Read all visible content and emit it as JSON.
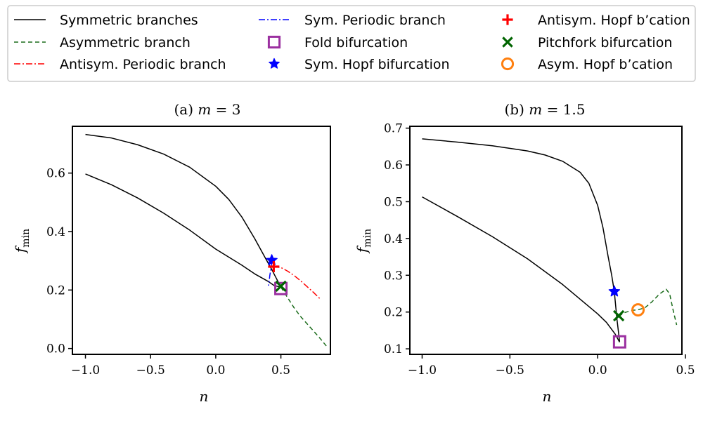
{
  "legend": {
    "entries": [
      {
        "label": "Symmetric branches",
        "kind": "line",
        "color": "#000000",
        "dash": "solid"
      },
      {
        "label": "Asymmetric branch",
        "kind": "line",
        "color": "#1a6b1a",
        "dash": "dashed"
      },
      {
        "label": "Antisym. Periodic branch",
        "kind": "line",
        "color": "#ff0000",
        "dash": "dashdot"
      },
      {
        "label": "Sym. Periodic branch",
        "kind": "line",
        "color": "#0000ff",
        "dash": "dashdot"
      },
      {
        "label": "Fold bifurcation",
        "kind": "square",
        "color": "#9b30a0"
      },
      {
        "label": "Sym. Hopf bifurcation",
        "kind": "star",
        "color": "#0000ff"
      },
      {
        "label": "Antisym. Hopf b’cation",
        "kind": "plus",
        "color": "#ff0000"
      },
      {
        "label": "Pitchfork bifurcation",
        "kind": "x",
        "color": "#006400"
      },
      {
        "label": "Asym. Hopf b’cation",
        "kind": "circle",
        "color": "#ff7f0e"
      }
    ]
  },
  "chart_data": [
    {
      "type": "line",
      "title": "(a) m = 3",
      "xlabel": "n",
      "ylabel": "f_min",
      "xlim": [
        -1.1,
        0.88
      ],
      "ylim": [
        -0.02,
        0.76
      ],
      "xticks": [
        -1.0,
        -0.5,
        0.0,
        0.5
      ],
      "xtick_labels": [
        "−1.0",
        "−0.5",
        "0.0",
        "0.5"
      ],
      "yticks": [
        0.0,
        0.2,
        0.4,
        0.6
      ],
      "ytick_labels": [
        "0.0",
        "0.2",
        "0.4",
        "0.6"
      ],
      "series": [
        {
          "kind": "sym",
          "x": [
            -1.0,
            -0.8,
            -0.6,
            -0.4,
            -0.2,
            0.0,
            0.1,
            0.2,
            0.3,
            0.38,
            0.43,
            0.5
          ],
          "y": [
            0.732,
            0.72,
            0.697,
            0.665,
            0.62,
            0.555,
            0.51,
            0.45,
            0.375,
            0.31,
            0.27,
            0.21
          ]
        },
        {
          "kind": "sym",
          "x": [
            -1.0,
            -0.8,
            -0.6,
            -0.4,
            -0.2,
            0.0,
            0.2,
            0.3,
            0.4,
            0.45,
            0.5
          ],
          "y": [
            0.597,
            0.56,
            0.515,
            0.463,
            0.405,
            0.34,
            0.285,
            0.255,
            0.23,
            0.215,
            0.21
          ]
        },
        {
          "kind": "asym",
          "x": [
            0.5,
            0.55,
            0.6,
            0.65,
            0.7,
            0.75,
            0.8,
            0.85
          ],
          "y": [
            0.21,
            0.175,
            0.14,
            0.11,
            0.085,
            0.06,
            0.035,
            0.008
          ]
        },
        {
          "kind": "antiper",
          "x": [
            0.44,
            0.5,
            0.55,
            0.6,
            0.65,
            0.7,
            0.75,
            0.8
          ],
          "y": [
            0.28,
            0.277,
            0.265,
            0.25,
            0.232,
            0.212,
            0.192,
            0.17
          ]
        },
        {
          "kind": "symper",
          "x": [
            0.43,
            0.425,
            0.415,
            0.41,
            0.405
          ],
          "y": [
            0.3,
            0.275,
            0.25,
            0.23,
            0.215
          ]
        }
      ],
      "markers": [
        {
          "kind": "star",
          "x": 0.43,
          "y": 0.302
        },
        {
          "kind": "plus",
          "x": 0.445,
          "y": 0.28
        },
        {
          "kind": "square",
          "x": 0.5,
          "y": 0.205
        },
        {
          "kind": "x",
          "x": 0.5,
          "y": 0.213
        }
      ]
    },
    {
      "type": "line",
      "title": "(b) m = 1.5",
      "xlabel": "n",
      "ylabel": "f_min",
      "xlim": [
        -1.07,
        0.48
      ],
      "ylim": [
        0.085,
        0.705
      ],
      "xticks": [
        -1.0,
        -0.5,
        0.0,
        0.5
      ],
      "xtick_labels": [
        "−1.0",
        "−0.5",
        "0.0",
        "0.5"
      ],
      "yticks": [
        0.1,
        0.2,
        0.3,
        0.4,
        0.5,
        0.6,
        0.7
      ],
      "ytick_labels": [
        "0.1",
        "0.2",
        "0.3",
        "0.4",
        "0.5",
        "0.6",
        "0.7"
      ],
      "series": [
        {
          "kind": "sym",
          "x": [
            -1.0,
            -0.8,
            -0.6,
            -0.4,
            -0.3,
            -0.2,
            -0.1,
            -0.05,
            0.0,
            0.03,
            0.06,
            0.08,
            0.095,
            0.11,
            0.125
          ],
          "y": [
            0.671,
            0.662,
            0.652,
            0.638,
            0.627,
            0.61,
            0.58,
            0.55,
            0.49,
            0.43,
            0.35,
            0.3,
            0.255,
            0.18,
            0.12
          ]
        },
        {
          "kind": "sym",
          "x": [
            -1.0,
            -0.8,
            -0.6,
            -0.4,
            -0.2,
            0.0,
            0.05,
            0.1,
            0.125
          ],
          "y": [
            0.513,
            0.46,
            0.405,
            0.345,
            0.275,
            0.195,
            0.172,
            0.14,
            0.118
          ]
        },
        {
          "kind": "asym",
          "x": [
            0.12,
            0.15,
            0.2,
            0.23,
            0.27,
            0.31,
            0.35,
            0.39,
            0.41,
            0.43,
            0.45
          ],
          "y": [
            0.188,
            0.198,
            0.205,
            0.206,
            0.212,
            0.228,
            0.248,
            0.262,
            0.25,
            0.205,
            0.165
          ]
        }
      ],
      "markers": [
        {
          "kind": "star",
          "x": 0.095,
          "y": 0.256
        },
        {
          "kind": "x",
          "x": 0.12,
          "y": 0.19
        },
        {
          "kind": "circle",
          "x": 0.23,
          "y": 0.206
        },
        {
          "kind": "square",
          "x": 0.125,
          "y": 0.119
        }
      ]
    }
  ]
}
